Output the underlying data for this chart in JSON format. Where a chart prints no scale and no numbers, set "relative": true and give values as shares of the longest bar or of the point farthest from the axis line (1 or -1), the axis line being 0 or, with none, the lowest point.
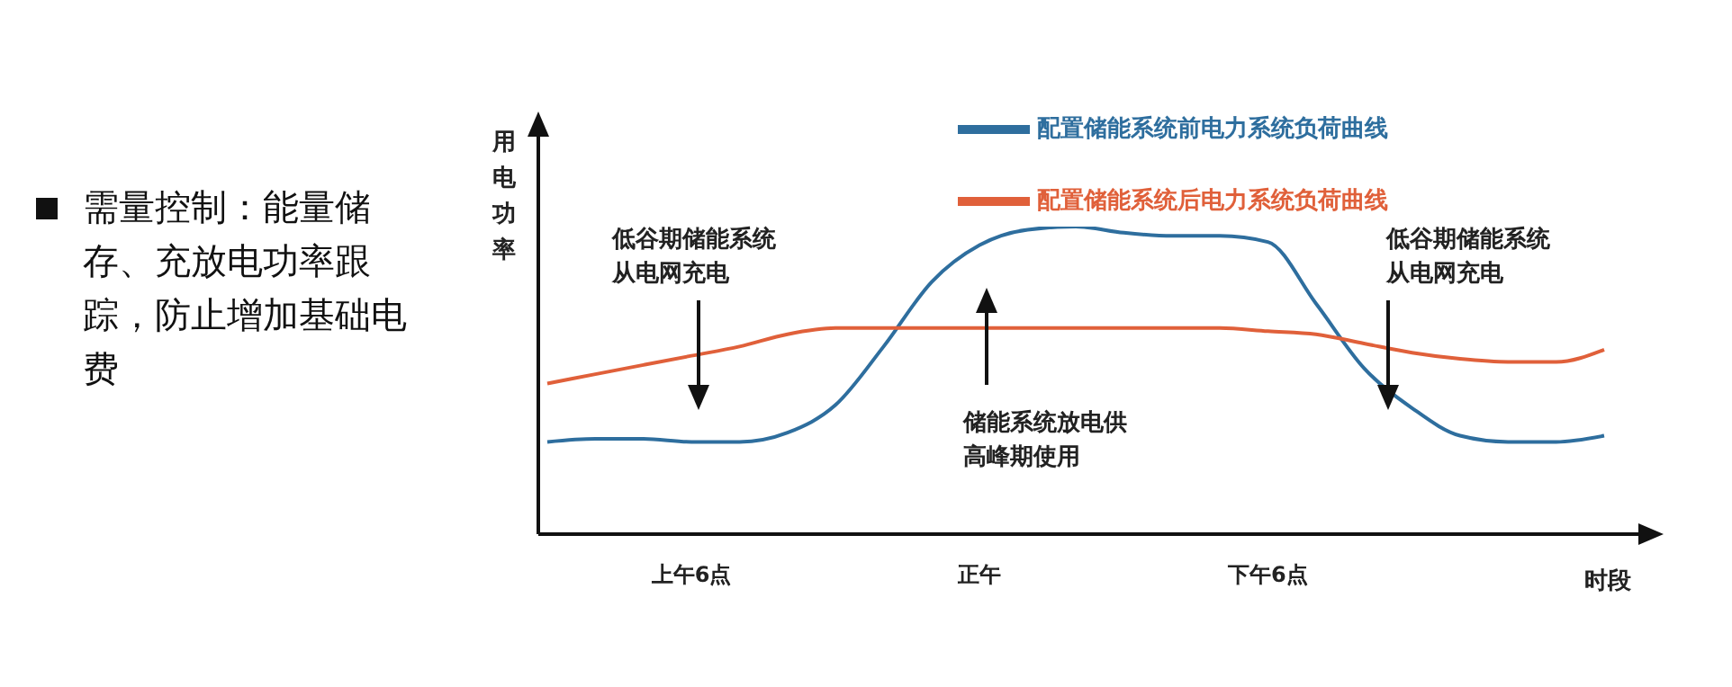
{
  "chart_data": {
    "type": "line",
    "relative": true,
    "ylabel": "用电功率",
    "xlabel": "时段",
    "categories": [
      null,
      null,
      null,
      "上午6点",
      null,
      null,
      null,
      null,
      null,
      "正午",
      null,
      null,
      null,
      null,
      null,
      "下午6点",
      null,
      null,
      null,
      null,
      null,
      null,
      null
    ],
    "series": [
      {
        "name": "配置储能系统前电力系统负荷曲线",
        "color": "#2e6e9e",
        "values": [
          0.3,
          0.31,
          0.31,
          0.3,
          0.3,
          0.33,
          0.42,
          0.61,
          0.82,
          0.94,
          0.99,
          1,
          0.98,
          0.97,
          0.97,
          0.95,
          0.75,
          0.54,
          0.41,
          0.32,
          0.3,
          0.3,
          0.32
        ]
      },
      {
        "name": "配置储能系统后电力系统负荷曲线",
        "color": "#e0603a",
        "values": [
          0.49,
          0.52,
          0.55,
          0.58,
          0.61,
          0.65,
          0.67,
          0.67,
          0.67,
          0.67,
          0.67,
          0.67,
          0.67,
          0.67,
          0.67,
          0.66,
          0.65,
          0.62,
          0.59,
          0.57,
          0.56,
          0.56,
          0.6
        ]
      }
    ],
    "annotations": [
      "需量控制：能量储存、充放电功率跟踪，防止增加基础电费",
      "低谷期储能系统从电网充电",
      "储能系统放电供高峰期使用",
      "低谷期储能系统从电网充电"
    ],
    "legend": "top right",
    "grid": false,
    "marker": "none",
    "line_style": "solid"
  }
}
